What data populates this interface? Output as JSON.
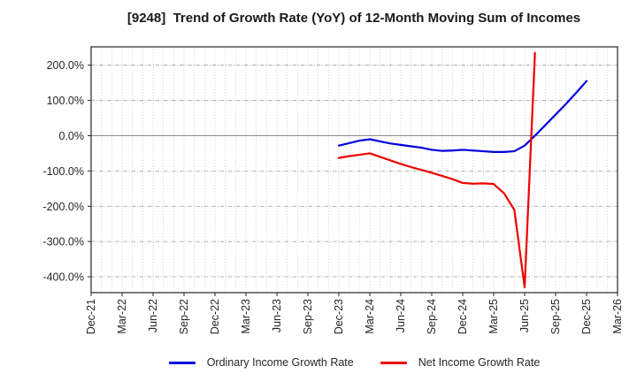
{
  "figure": {
    "title": "[9248]  Trend of Growth Rate (YoY) of 12-Month Moving Sum of Incomes",
    "ticker": "9248"
  },
  "chart_data": {
    "type": "line",
    "title": "[9248]  Trend of Growth Rate (YoY) of 12-Month Moving Sum of Incomes",
    "ylabel": "",
    "xlabel": "",
    "y_unit": "%",
    "ylim": [
      -445,
      252
    ],
    "months_total": 51,
    "x_tick_labels": [
      "Dec-21",
      "Mar-22",
      "Jun-22",
      "Sep-22",
      "Dec-22",
      "Mar-23",
      "Jun-23",
      "Sep-23",
      "Dec-23",
      "Mar-24",
      "Jun-24",
      "Sep-24",
      "Dec-24",
      "Mar-25",
      "Jun-25",
      "Sep-25",
      "Dec-25",
      "Mar-26"
    ],
    "y_ticks": [
      {
        "value": 200,
        "label": "200.0%"
      },
      {
        "value": 100,
        "label": "100.0%"
      },
      {
        "value": 0,
        "label": "0.0%"
      },
      {
        "value": -100,
        "label": "-100.0%"
      },
      {
        "value": -200,
        "label": "-200.0%"
      },
      {
        "value": -300,
        "label": "-300.0%"
      },
      {
        "value": -400,
        "label": "-400.0%"
      }
    ],
    "grid": {
      "vertical": "monthly dotted",
      "horizontal": "every 100% dash-dot",
      "zero_line": "solid gray"
    },
    "legend_position": "bottom-center",
    "series": [
      {
        "id": "ordinary-income",
        "name": "Ordinary Income Growth Rate",
        "color": "#0000dd",
        "start_month": 24,
        "x": [
          "Dec-23",
          "Jan-24",
          "Feb-24",
          "Mar-24",
          "Apr-24",
          "May-24",
          "Jun-24",
          "Jul-24",
          "Aug-24",
          "Sep-24",
          "Oct-24",
          "Nov-24",
          "Dec-24",
          "Jan-25",
          "Feb-25",
          "Mar-25",
          "Apr-25",
          "May-25",
          "Jun-25",
          "Jul-25",
          "Aug-25",
          "Sep-25",
          "Oct-25",
          "Nov-25",
          "Dec-25"
        ],
        "values": [
          -28,
          -21,
          -14,
          -10,
          -16,
          -22,
          -26,
          -30,
          -34,
          -40,
          -43,
          -42,
          -40,
          -42,
          -44,
          -46,
          -46,
          -44,
          -28,
          0,
          30,
          60,
          90,
          122,
          155
        ]
      },
      {
        "id": "net-income",
        "name": "Net Income Growth Rate",
        "color": "#ee0000",
        "start_month": 24,
        "x": [
          "Dec-23",
          "Jan-24",
          "Feb-24",
          "Mar-24",
          "Apr-24",
          "May-24",
          "Jun-24",
          "Jul-24",
          "Aug-24",
          "Sep-24",
          "Oct-24",
          "Nov-24",
          "Dec-24",
          "Jan-25",
          "Feb-25",
          "Mar-25",
          "Apr-25",
          "May-25",
          "Jun-25",
          "Jul-25"
        ],
        "values": [
          -63,
          -58,
          -54,
          -50,
          -60,
          -70,
          -80,
          -89,
          -97,
          -105,
          -114,
          -123,
          -134,
          -136,
          -135,
          -137,
          -163,
          -210,
          -430,
          235
        ]
      }
    ],
    "colors": {
      "background": "#ffffff",
      "border": "#262626",
      "text": "#262626",
      "grid_vertical": "#c4c4c4",
      "grid_horizontal": "#ababab",
      "zero_line": "#8a8a8a"
    }
  }
}
